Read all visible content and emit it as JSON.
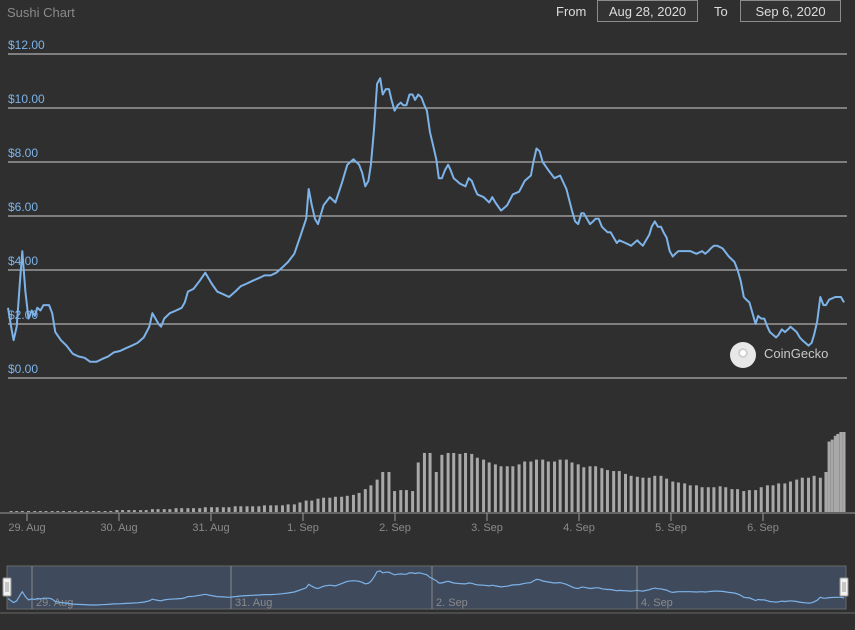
{
  "header": {
    "title": "Sushi Chart",
    "from_label": "From",
    "from_value": "Aug 28, 2020",
    "to_label": "To",
    "to_value": "Sep 6, 2020"
  },
  "watermark": {
    "text": "CoinGecko"
  },
  "colors": {
    "background": "#2f2f2f",
    "line": "#7db3e8",
    "volume": "#a8a8a8",
    "grid": "#cfcfcf"
  },
  "chart_data": {
    "type": "line",
    "ylim": [
      0,
      12
    ],
    "yticks": [
      "$0.00",
      "$2.00",
      "$4.00",
      "$6.00",
      "$8.00",
      "$10.00",
      "$12.00"
    ],
    "xlabels": [
      "29. Aug",
      "30. Aug",
      "31. Aug",
      "1. Sep",
      "2. Sep",
      "3. Sep",
      "4. Sep",
      "5. Sep",
      "6. Sep"
    ],
    "navigator_labels": [
      "29. Aug",
      "31. Aug",
      "2. Sep",
      "4. Sep"
    ],
    "x_range_days": [
      0,
      9.4
    ],
    "price_series": {
      "points": [
        [
          0.0,
          2.6
        ],
        [
          0.05,
          1.9
        ],
        [
          0.09,
          1.4
        ],
        [
          0.14,
          1.9
        ],
        [
          0.19,
          3.5
        ],
        [
          0.23,
          4.7
        ],
        [
          0.28,
          3.2
        ],
        [
          0.33,
          2.2
        ],
        [
          0.38,
          2.5
        ],
        [
          0.43,
          2.3
        ],
        [
          0.47,
          2.6
        ],
        [
          0.52,
          2.5
        ],
        [
          0.57,
          2.7
        ],
        [
          0.66,
          2.7
        ],
        [
          0.71,
          2.4
        ],
        [
          0.76,
          1.7
        ],
        [
          0.85,
          1.4
        ],
        [
          0.94,
          1.2
        ],
        [
          1.04,
          0.9
        ],
        [
          1.13,
          0.8
        ],
        [
          1.23,
          0.75
        ],
        [
          1.32,
          0.6
        ],
        [
          1.42,
          0.6
        ],
        [
          1.51,
          0.7
        ],
        [
          1.61,
          0.8
        ],
        [
          1.7,
          0.95
        ],
        [
          1.8,
          1.0
        ],
        [
          1.89,
          1.1
        ],
        [
          1.99,
          1.2
        ],
        [
          2.08,
          1.3
        ],
        [
          2.18,
          1.5
        ],
        [
          2.27,
          1.9
        ],
        [
          2.32,
          2.4
        ],
        [
          2.37,
          2.2
        ],
        [
          2.42,
          2.0
        ],
        [
          2.46,
          1.9
        ],
        [
          2.51,
          2.2
        ],
        [
          2.6,
          2.4
        ],
        [
          2.7,
          2.5
        ],
        [
          2.79,
          2.6
        ],
        [
          2.84,
          2.8
        ],
        [
          2.89,
          3.2
        ],
        [
          2.98,
          3.3
        ],
        [
          3.08,
          3.6
        ],
        [
          3.17,
          3.9
        ],
        [
          3.27,
          3.5
        ],
        [
          3.36,
          3.2
        ],
        [
          3.46,
          3.1
        ],
        [
          3.55,
          3.0
        ],
        [
          3.65,
          3.2
        ],
        [
          3.74,
          3.4
        ],
        [
          3.84,
          3.5
        ],
        [
          3.93,
          3.6
        ],
        [
          4.03,
          3.7
        ],
        [
          4.12,
          3.8
        ],
        [
          4.22,
          3.8
        ],
        [
          4.31,
          3.9
        ],
        [
          4.41,
          4.1
        ],
        [
          4.5,
          4.3
        ],
        [
          4.6,
          4.6
        ],
        [
          4.69,
          5.2
        ],
        [
          4.79,
          5.9
        ],
        [
          4.83,
          7.0
        ],
        [
          4.88,
          6.4
        ],
        [
          4.93,
          5.9
        ],
        [
          4.98,
          5.7
        ],
        [
          5.07,
          6.4
        ],
        [
          5.17,
          6.7
        ],
        [
          5.26,
          6.5
        ],
        [
          5.36,
          7.2
        ],
        [
          5.45,
          7.9
        ],
        [
          5.55,
          8.1
        ],
        [
          5.64,
          7.9
        ],
        [
          5.69,
          7.6
        ],
        [
          5.74,
          7.1
        ],
        [
          5.79,
          7.3
        ],
        [
          5.83,
          7.9
        ],
        [
          5.88,
          9.2
        ],
        [
          5.93,
          10.9
        ],
        [
          5.98,
          11.1
        ],
        [
          6.02,
          10.5
        ],
        [
          6.07,
          10.7
        ],
        [
          6.12,
          10.7
        ],
        [
          6.16,
          10.3
        ],
        [
          6.21,
          9.9
        ],
        [
          6.26,
          10.1
        ],
        [
          6.31,
          10.2
        ],
        [
          6.35,
          10.1
        ],
        [
          6.4,
          10.1
        ],
        [
          6.45,
          10.5
        ],
        [
          6.5,
          10.5
        ],
        [
          6.54,
          10.3
        ],
        [
          6.59,
          10.5
        ],
        [
          6.64,
          10.4
        ],
        [
          6.69,
          10.1
        ],
        [
          6.73,
          9.9
        ],
        [
          6.78,
          9.1
        ],
        [
          6.83,
          8.6
        ],
        [
          6.88,
          8.1
        ],
        [
          6.92,
          7.4
        ],
        [
          6.97,
          7.4
        ],
        [
          7.02,
          7.7
        ],
        [
          7.07,
          7.9
        ],
        [
          7.11,
          7.7
        ],
        [
          7.16,
          7.4
        ],
        [
          7.21,
          7.3
        ],
        [
          7.26,
          7.2
        ],
        [
          7.35,
          7.1
        ],
        [
          7.4,
          7.4
        ],
        [
          7.45,
          7.3
        ],
        [
          7.5,
          7.0
        ],
        [
          7.54,
          6.8
        ],
        [
          7.64,
          6.7
        ],
        [
          7.73,
          6.5
        ],
        [
          7.78,
          6.7
        ],
        [
          7.83,
          6.5
        ],
        [
          7.92,
          6.2
        ],
        [
          8.02,
          6.4
        ],
        [
          8.11,
          6.8
        ],
        [
          8.21,
          6.9
        ],
        [
          8.3,
          7.3
        ],
        [
          8.4,
          7.5
        ],
        [
          8.44,
          8.0
        ],
        [
          8.49,
          8.5
        ],
        [
          8.54,
          8.4
        ],
        [
          8.59,
          8.0
        ],
        [
          8.68,
          7.7
        ],
        [
          8.78,
          7.4
        ],
        [
          8.87,
          7.5
        ],
        [
          8.97,
          7.0
        ],
        [
          9.06,
          6.2
        ],
        [
          9.11,
          5.8
        ],
        [
          9.16,
          5.7
        ],
        [
          9.21,
          6.1
        ],
        [
          9.25,
          6.1
        ],
        [
          9.3,
          5.9
        ],
        [
          9.35,
          5.7
        ],
        [
          9.4,
          5.8
        ],
        [
          9.44,
          5.9
        ],
        [
          9.49,
          5.9
        ],
        [
          9.54,
          5.6
        ],
        [
          9.63,
          5.4
        ],
        [
          9.68,
          5.4
        ],
        [
          9.73,
          5.2
        ],
        [
          9.78,
          5.0
        ],
        [
          9.82,
          5.1
        ],
        [
          9.92,
          5.0
        ],
        [
          10.01,
          4.9
        ],
        [
          10.06,
          5.0
        ],
        [
          10.11,
          5.1
        ],
        [
          10.15,
          5.0
        ],
        [
          10.2,
          4.9
        ],
        [
          10.25,
          5.1
        ],
        [
          10.3,
          5.3
        ],
        [
          10.34,
          5.6
        ],
        [
          10.39,
          5.8
        ],
        [
          10.44,
          5.6
        ],
        [
          10.49,
          5.6
        ],
        [
          10.53,
          5.4
        ],
        [
          10.58,
          5.2
        ],
        [
          10.63,
          4.7
        ],
        [
          10.68,
          4.5
        ],
        [
          10.72,
          4.6
        ],
        [
          10.77,
          4.7
        ],
        [
          10.87,
          4.7
        ],
        [
          10.96,
          4.7
        ],
        [
          11.06,
          4.6
        ],
        [
          11.15,
          4.7
        ],
        [
          11.2,
          4.6
        ],
        [
          11.25,
          4.7
        ],
        [
          11.29,
          4.8
        ],
        [
          11.34,
          4.9
        ],
        [
          11.39,
          4.9
        ],
        [
          11.48,
          4.8
        ],
        [
          11.58,
          4.5
        ],
        [
          11.67,
          4.3
        ],
        [
          11.72,
          4.0
        ],
        [
          11.77,
          3.6
        ],
        [
          11.82,
          3.0
        ],
        [
          11.86,
          2.9
        ],
        [
          11.91,
          2.8
        ],
        [
          11.96,
          2.4
        ],
        [
          12.01,
          2.0
        ],
        [
          12.05,
          2.3
        ],
        [
          12.1,
          2.2
        ],
        [
          12.15,
          2.2
        ],
        [
          12.2,
          1.9
        ],
        [
          12.24,
          1.7
        ],
        [
          12.29,
          1.6
        ],
        [
          12.34,
          1.5
        ],
        [
          12.38,
          1.6
        ],
        [
          12.43,
          1.8
        ],
        [
          12.48,
          1.7
        ],
        [
          12.53,
          1.8
        ],
        [
          12.57,
          1.9
        ],
        [
          12.62,
          1.8
        ],
        [
          12.67,
          1.7
        ],
        [
          12.72,
          1.5
        ],
        [
          12.76,
          1.4
        ],
        [
          12.81,
          1.3
        ],
        [
          12.86,
          1.2
        ],
        [
          12.91,
          1.3
        ],
        [
          12.95,
          1.6
        ],
        [
          13.0,
          2.1
        ],
        [
          13.05,
          3.0
        ],
        [
          13.1,
          2.7
        ],
        [
          13.14,
          2.7
        ],
        [
          13.19,
          2.9
        ],
        [
          13.29,
          3.0
        ],
        [
          13.38,
          3.0
        ],
        [
          13.43,
          2.8
        ]
      ]
    },
    "volume_series": {
      "points": [
        [
          0.05,
          0.01
        ],
        [
          0.14,
          0.01
        ],
        [
          0.23,
          0.01
        ],
        [
          0.33,
          0.01
        ],
        [
          0.43,
          0.01
        ],
        [
          0.52,
          0.01
        ],
        [
          0.61,
          0.01
        ],
        [
          0.71,
          0.01
        ],
        [
          0.8,
          0.01
        ],
        [
          0.89,
          0.01
        ],
        [
          0.99,
          0.01
        ],
        [
          1.08,
          0.01
        ],
        [
          1.18,
          0.01
        ],
        [
          1.27,
          0.01
        ],
        [
          1.37,
          0.01
        ],
        [
          1.46,
          0.01
        ],
        [
          1.56,
          0.01
        ],
        [
          1.65,
          0.01
        ],
        [
          1.75,
          0.02
        ],
        [
          1.84,
          0.02
        ],
        [
          1.94,
          0.02
        ],
        [
          2.03,
          0.02
        ],
        [
          2.13,
          0.02
        ],
        [
          2.22,
          0.02
        ],
        [
          2.32,
          0.03
        ],
        [
          2.41,
          0.03
        ],
        [
          2.51,
          0.03
        ],
        [
          2.6,
          0.03
        ],
        [
          2.7,
          0.04
        ],
        [
          2.79,
          0.04
        ],
        [
          2.89,
          0.04
        ],
        [
          2.98,
          0.04
        ],
        [
          3.08,
          0.04
        ],
        [
          3.17,
          0.05
        ],
        [
          3.27,
          0.05
        ],
        [
          3.36,
          0.05
        ],
        [
          3.46,
          0.05
        ],
        [
          3.55,
          0.05
        ],
        [
          3.65,
          0.06
        ],
        [
          3.74,
          0.06
        ],
        [
          3.84,
          0.06
        ],
        [
          3.93,
          0.06
        ],
        [
          4.03,
          0.06
        ],
        [
          4.12,
          0.07
        ],
        [
          4.22,
          0.07
        ],
        [
          4.31,
          0.07
        ],
        [
          4.41,
          0.07
        ],
        [
          4.5,
          0.08
        ],
        [
          4.6,
          0.08
        ],
        [
          4.69,
          0.1
        ],
        [
          4.79,
          0.12
        ],
        [
          4.88,
          0.12
        ],
        [
          4.98,
          0.14
        ],
        [
          5.07,
          0.15
        ],
        [
          5.17,
          0.15
        ],
        [
          5.26,
          0.16
        ],
        [
          5.36,
          0.16
        ],
        [
          5.45,
          0.17
        ],
        [
          5.55,
          0.18
        ],
        [
          5.64,
          0.2
        ],
        [
          5.74,
          0.24
        ],
        [
          5.83,
          0.28
        ],
        [
          5.93,
          0.34
        ],
        [
          6.02,
          0.42
        ],
        [
          6.12,
          0.42
        ],
        [
          6.21,
          0.22
        ],
        [
          6.31,
          0.23
        ],
        [
          6.4,
          0.23
        ],
        [
          6.5,
          0.22
        ],
        [
          6.59,
          0.52
        ],
        [
          6.69,
          0.62
        ],
        [
          6.78,
          0.62
        ],
        [
          6.88,
          0.42
        ],
        [
          6.97,
          0.6
        ],
        [
          7.07,
          0.62
        ],
        [
          7.16,
          0.62
        ],
        [
          7.26,
          0.61
        ],
        [
          7.35,
          0.62
        ],
        [
          7.45,
          0.61
        ],
        [
          7.54,
          0.57
        ],
        [
          7.64,
          0.55
        ],
        [
          7.73,
          0.52
        ],
        [
          7.83,
          0.5
        ],
        [
          7.92,
          0.48
        ],
        [
          8.02,
          0.48
        ],
        [
          8.11,
          0.48
        ],
        [
          8.21,
          0.5
        ],
        [
          8.3,
          0.53
        ],
        [
          8.4,
          0.53
        ],
        [
          8.49,
          0.55
        ],
        [
          8.59,
          0.55
        ],
        [
          8.68,
          0.53
        ],
        [
          8.78,
          0.53
        ],
        [
          8.87,
          0.55
        ],
        [
          8.97,
          0.55
        ],
        [
          9.06,
          0.52
        ],
        [
          9.16,
          0.5
        ],
        [
          9.25,
          0.47
        ],
        [
          9.35,
          0.48
        ],
        [
          9.44,
          0.48
        ],
        [
          9.54,
          0.46
        ],
        [
          9.63,
          0.44
        ],
        [
          9.73,
          0.43
        ],
        [
          9.82,
          0.43
        ],
        [
          9.92,
          0.4
        ],
        [
          10.01,
          0.38
        ],
        [
          10.11,
          0.37
        ],
        [
          10.2,
          0.36
        ],
        [
          10.3,
          0.36
        ],
        [
          10.39,
          0.38
        ],
        [
          10.49,
          0.38
        ],
        [
          10.58,
          0.35
        ],
        [
          10.68,
          0.32
        ],
        [
          10.77,
          0.31
        ],
        [
          10.87,
          0.3
        ],
        [
          10.96,
          0.28
        ],
        [
          11.06,
          0.28
        ],
        [
          11.15,
          0.26
        ],
        [
          11.25,
          0.26
        ],
        [
          11.34,
          0.26
        ],
        [
          11.44,
          0.27
        ],
        [
          11.53,
          0.26
        ],
        [
          11.63,
          0.24
        ],
        [
          11.72,
          0.24
        ],
        [
          11.82,
          0.22
        ],
        [
          11.91,
          0.23
        ],
        [
          12.01,
          0.23
        ],
        [
          12.1,
          0.26
        ],
        [
          12.2,
          0.28
        ],
        [
          12.29,
          0.28
        ],
        [
          12.38,
          0.3
        ],
        [
          12.48,
          0.3
        ],
        [
          12.57,
          0.32
        ],
        [
          12.67,
          0.34
        ],
        [
          12.76,
          0.36
        ],
        [
          12.86,
          0.36
        ],
        [
          12.95,
          0.38
        ],
        [
          13.05,
          0.36
        ],
        [
          13.14,
          0.42
        ],
        [
          13.19,
          0.74
        ],
        [
          13.24,
          0.76
        ],
        [
          13.29,
          0.8
        ],
        [
          13.33,
          0.82
        ],
        [
          13.38,
          0.84
        ],
        [
          13.43,
          0.84
        ]
      ]
    }
  }
}
